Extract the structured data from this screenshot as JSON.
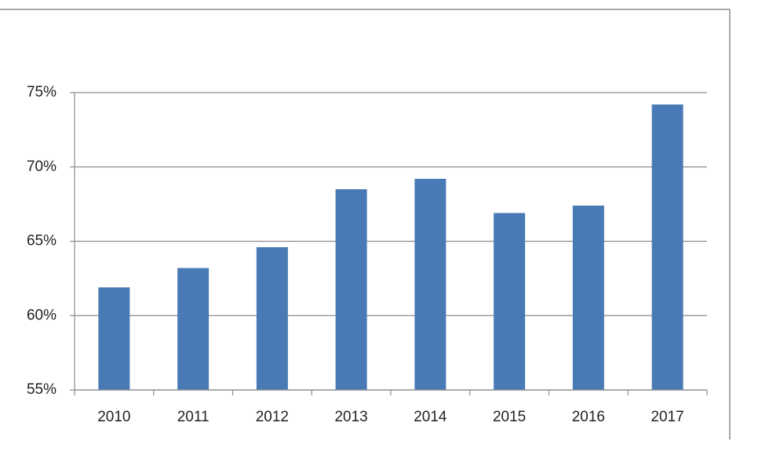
{
  "chart_data": {
    "type": "bar",
    "categories": [
      "2010",
      "2011",
      "2012",
      "2013",
      "2014",
      "2015",
      "2016",
      "2017"
    ],
    "values": [
      61.9,
      63.2,
      64.6,
      68.5,
      69.2,
      66.9,
      67.4,
      74.2
    ],
    "color": "#4a7ab5",
    "ylim": [
      55,
      75
    ],
    "yticks": [
      {
        "value": 55,
        "label": "55%"
      },
      {
        "value": 60,
        "label": "60%"
      },
      {
        "value": 65,
        "label": "65%"
      },
      {
        "value": 70,
        "label": "70%"
      },
      {
        "value": 75,
        "label": "75%"
      }
    ],
    "grid": true
  }
}
